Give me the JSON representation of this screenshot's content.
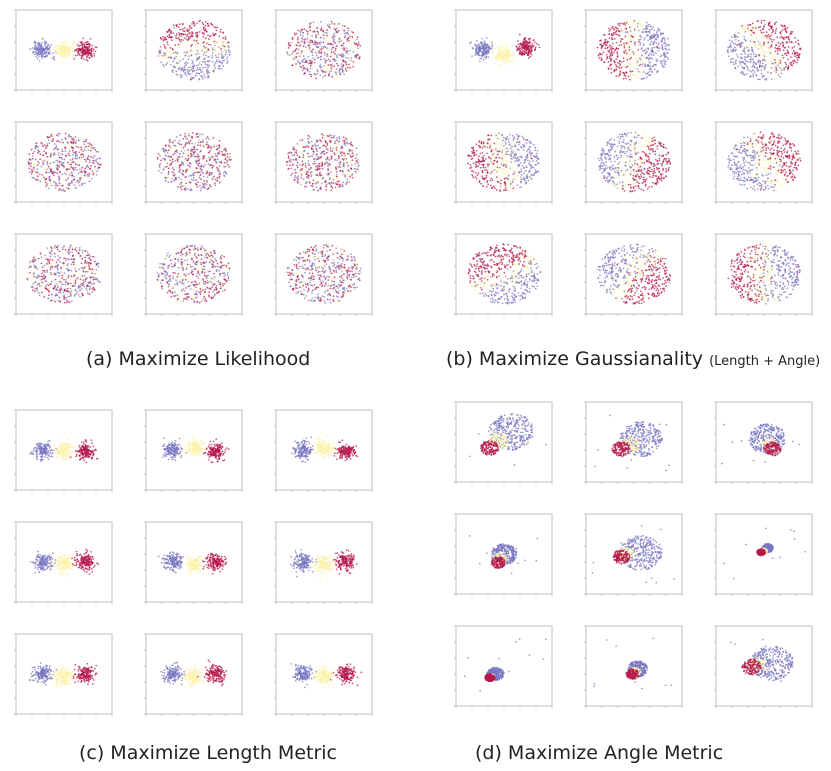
{
  "palette": {
    "purple": "#7b76c2",
    "yellow": "#fbf2a8",
    "red": "#b5174a",
    "axis": "#9a9a9a",
    "tick": "#444444"
  },
  "captions": {
    "a": "(a) Maximize Likelihood",
    "b_main": "(b) Maximize Gaussianality",
    "b_small": "(Length + Angle)",
    "c": "(c) Maximize Length Metric",
    "d": "(d) Maximize Angle Metric"
  },
  "chart_data": [
    {
      "type": "scatter",
      "panel": "a",
      "caption": "(a) Maximize Likelihood",
      "grid": "3x3",
      "series": [
        {
          "color": "#7b76c2"
        },
        {
          "color": "#fbf2a8"
        },
        {
          "color": "#b5174a"
        }
      ],
      "subplots": [
        {
          "pattern": "clusters",
          "centers": {
            "purple": [
              -30,
              0
            ],
            "yellow": [
              0,
              0
            ],
            "red": [
              30,
              0
            ]
          },
          "spread": 12
        },
        {
          "pattern": "split",
          "angle_deg": 100,
          "radius": 65
        },
        {
          "pattern": "mixed_blob",
          "radius": 70
        },
        {
          "pattern": "mixed_blob",
          "radius": 70
        },
        {
          "pattern": "mixed_blob",
          "radius": 70
        },
        {
          "pattern": "mixed_blob",
          "radius": 70
        },
        {
          "pattern": "mixed_blob",
          "radius": 70
        },
        {
          "pattern": "mixed_blob",
          "radius": 70
        },
        {
          "pattern": "mixed_blob",
          "radius": 70
        }
      ]
    },
    {
      "type": "scatter",
      "panel": "b",
      "caption": "(b) Maximize Gaussianality (Length + Angle)",
      "grid": "3x3",
      "series": [
        {
          "color": "#7b76c2"
        },
        {
          "color": "#fbf2a8"
        },
        {
          "color": "#b5174a"
        }
      ],
      "subplots": [
        {
          "pattern": "clusters",
          "centers": {
            "purple": [
              -30,
              0
            ],
            "yellow": [
              0,
              -10
            ],
            "red": [
              30,
              5
            ]
          },
          "spread": 12
        },
        {
          "pattern": "split",
          "angle_deg": 180,
          "radius": 65
        },
        {
          "pattern": "split",
          "angle_deg": 35,
          "radius": 65
        },
        {
          "pattern": "split",
          "angle_deg": 200,
          "radius": 65
        },
        {
          "pattern": "split",
          "angle_deg": -20,
          "radius": 65
        },
        {
          "pattern": "split",
          "angle_deg": 25,
          "radius": 65
        },
        {
          "pattern": "split",
          "angle_deg": 120,
          "radius": 65
        },
        {
          "pattern": "split",
          "angle_deg": -35,
          "radius": 65
        },
        {
          "pattern": "split",
          "angle_deg": 185,
          "radius": 65
        }
      ]
    },
    {
      "type": "scatter",
      "panel": "c",
      "caption": "(c) Maximize Length Metric",
      "grid": "3x3",
      "series": [
        {
          "color": "#7b76c2"
        },
        {
          "color": "#fbf2a8"
        },
        {
          "color": "#b5174a"
        }
      ],
      "subplots": [
        {
          "pattern": "clusters",
          "centers": {
            "purple": [
              -30,
              0
            ],
            "yellow": [
              0,
              0
            ],
            "red": [
              30,
              -3
            ]
          },
          "spread": 12
        },
        {
          "pattern": "clusters",
          "centers": {
            "purple": [
              -30,
              0
            ],
            "yellow": [
              0,
              3
            ],
            "red": [
              30,
              -3
            ]
          },
          "spread": 12
        },
        {
          "pattern": "clusters",
          "centers": {
            "purple": [
              -30,
              0
            ],
            "yellow": [
              0,
              3
            ],
            "red": [
              30,
              -3
            ]
          },
          "spread": 12
        },
        {
          "pattern": "clusters",
          "centers": {
            "purple": [
              -30,
              0
            ],
            "yellow": [
              0,
              -4
            ],
            "red": [
              30,
              0
            ]
          },
          "spread": 12
        },
        {
          "pattern": "clusters",
          "centers": {
            "purple": [
              -30,
              0
            ],
            "yellow": [
              0,
              -4
            ],
            "red": [
              30,
              0
            ]
          },
          "spread": 12
        },
        {
          "pattern": "clusters",
          "centers": {
            "purple": [
              -30,
              0
            ],
            "yellow": [
              0,
              -4
            ],
            "red": [
              30,
              0
            ]
          },
          "spread": 12
        },
        {
          "pattern": "clusters",
          "centers": {
            "purple": [
              -30,
              0
            ],
            "yellow": [
              0,
              -4
            ],
            "red": [
              30,
              0
            ]
          },
          "spread": 12
        },
        {
          "pattern": "clusters",
          "centers": {
            "purple": [
              -30,
              0
            ],
            "yellow": [
              0,
              -4
            ],
            "red": [
              30,
              0
            ]
          },
          "spread": 12
        },
        {
          "pattern": "clusters",
          "centers": {
            "purple": [
              -30,
              0
            ],
            "yellow": [
              0,
              -4
            ],
            "red": [
              30,
              0
            ]
          },
          "spread": 12
        }
      ]
    },
    {
      "type": "scatter",
      "panel": "d",
      "caption": "(d) Maximize Angle Metric",
      "grid": "3x3",
      "series": [
        {
          "color": "#7b76c2"
        },
        {
          "color": "#fbf2a8"
        },
        {
          "color": "#b5174a"
        }
      ],
      "subplots": [
        {
          "pattern": "nested",
          "purple": [
            10,
            18,
            32
          ],
          "yellow": [
            -8,
            2,
            14
          ],
          "red": [
            -20,
            -10,
            13
          ]
        },
        {
          "pattern": "nested",
          "purple": [
            10,
            5,
            30
          ],
          "yellow": [
            -5,
            -5,
            14
          ],
          "red": [
            -18,
            -12,
            13
          ]
        },
        {
          "pattern": "nested",
          "purple": [
            5,
            5,
            26
          ],
          "yellow": [
            8,
            -5,
            12
          ],
          "red": [
            12,
            -12,
            12
          ]
        },
        {
          "pattern": "nested",
          "purple": [
            0,
            0,
            18
          ],
          "yellow": [
            -5,
            -8,
            10
          ],
          "red": [
            -8,
            -15,
            10
          ]
        },
        {
          "pattern": "nested",
          "purple": [
            10,
            2,
            30
          ],
          "yellow": [
            -12,
            0,
            12
          ],
          "red": [
            -18,
            -5,
            12
          ]
        },
        {
          "pattern": "nested",
          "purple": [
            5,
            10,
            8
          ],
          "yellow": [
            0,
            5,
            5
          ],
          "red": [
            -4,
            3,
            6
          ]
        },
        {
          "pattern": "nested",
          "purple": [
            -12,
            -14,
            12
          ],
          "yellow": [
            -18,
            -18,
            5
          ],
          "red": [
            -20,
            -20,
            7
          ]
        },
        {
          "pattern": "nested",
          "purple": [
            5,
            -5,
            14
          ],
          "yellow": [
            2,
            -10,
            8
          ],
          "red": [
            -2,
            -14,
            9
          ]
        },
        {
          "pattern": "nested",
          "purple": [
            12,
            5,
            30
          ],
          "yellow": [
            -10,
            3,
            12
          ],
          "red": [
            -18,
            -2,
            14
          ]
        }
      ]
    }
  ]
}
